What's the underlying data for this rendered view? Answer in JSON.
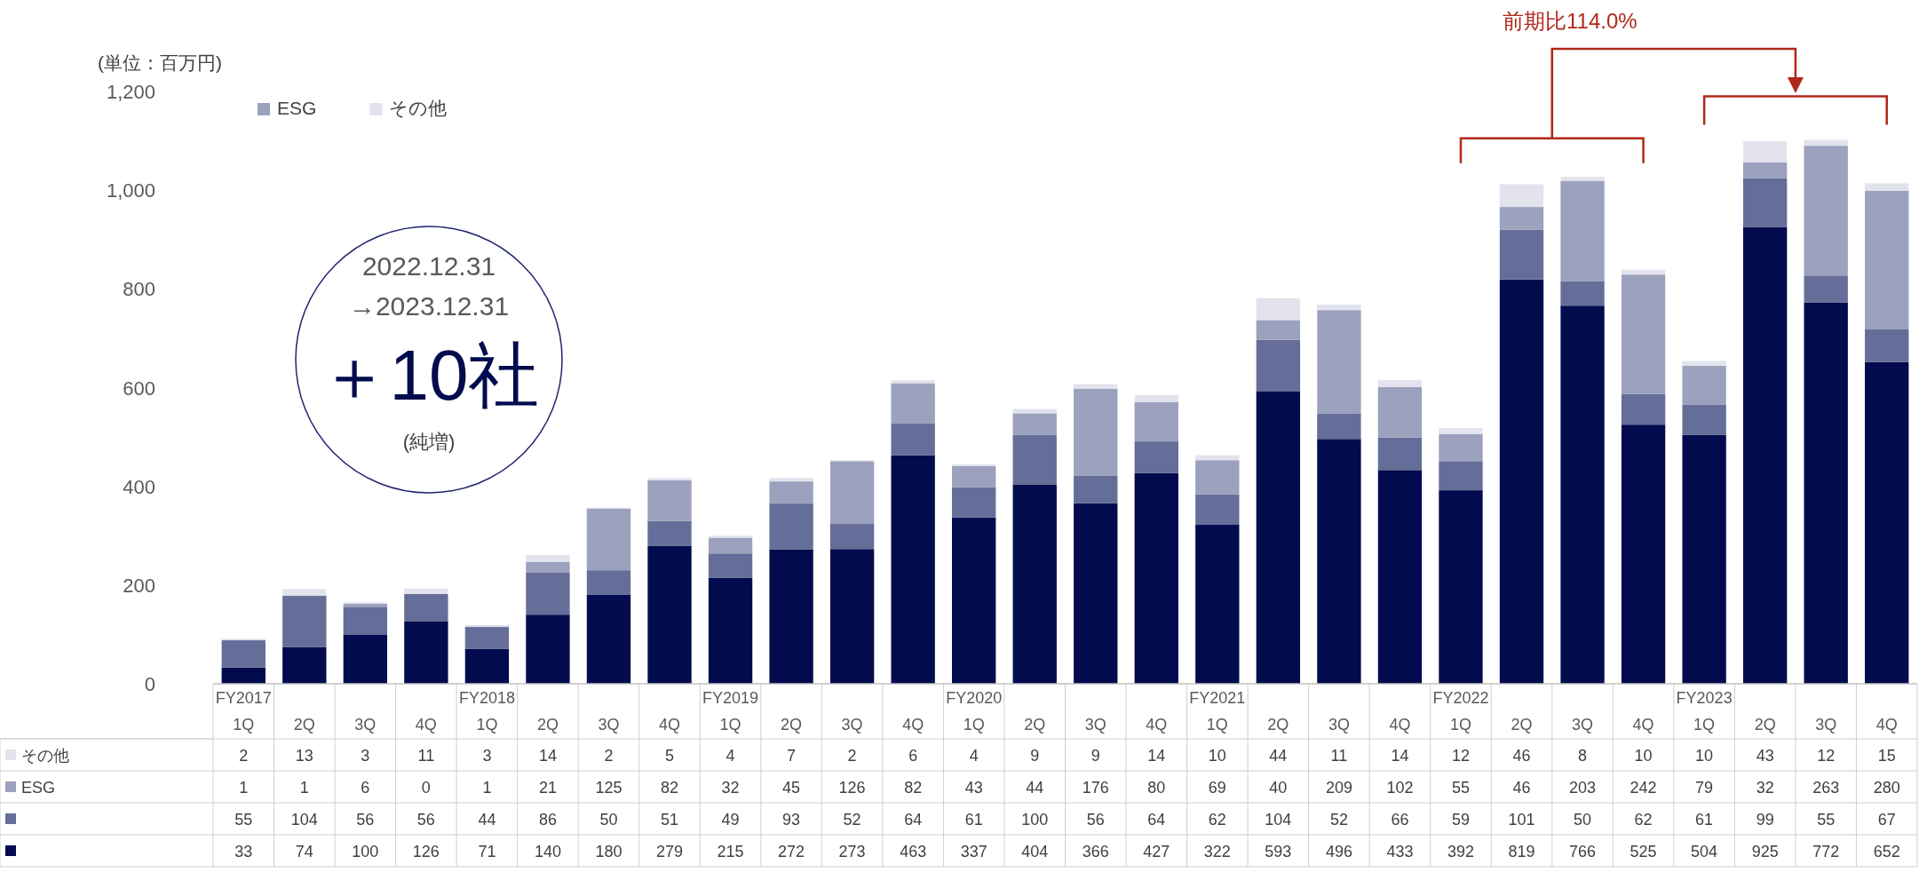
{
  "chart_data": {
    "type": "bar",
    "stacked": true,
    "legend": "top left",
    "data_labels": true,
    "categories": [
      "FY2017\n1Q",
      "2Q",
      "3Q",
      "4Q",
      "FY2018\n1Q",
      "2Q",
      "3Q",
      "4Q",
      "FY2019\n1Q",
      "2Q",
      "3Q",
      "4Q",
      "FY2020\n1Q",
      "2Q",
      "3Q",
      "4Q",
      "FY2021\n1Q",
      "2Q",
      "3Q",
      "4Q",
      "FY2022\n1Q",
      "2Q",
      "3Q",
      "4Q",
      "FY2023\n1Q",
      "2Q",
      "3Q",
      "4Q"
    ],
    "series": [
      {
        "color": "#020b4d",
        "values": [
          33,
          74,
          100,
          126,
          71,
          140,
          180,
          279,
          215,
          272,
          273,
          463,
          337,
          404,
          366,
          427,
          322,
          593,
          496,
          433,
          392,
          819,
          766,
          525,
          504,
          925,
          772,
          652
        ]
      },
      {
        "color": "#646e98",
        "values": [
          55,
          104,
          56,
          56,
          44,
          86,
          50,
          51,
          49,
          93,
          52,
          64,
          61,
          100,
          56,
          64,
          62,
          104,
          52,
          66,
          59,
          101,
          50,
          62,
          61,
          99,
          55,
          67
        ]
      },
      {
        "name": "ESG",
        "color": "#9ca1bd",
        "values": [
          1,
          1,
          6,
          0,
          1,
          21,
          125,
          82,
          32,
          45,
          126,
          82,
          43,
          44,
          176,
          80,
          69,
          40,
          209,
          102,
          55,
          46,
          203,
          242,
          79,
          32,
          263,
          280
        ]
      },
      {
        "name": "その他",
        "color": "#e2e3ed",
        "values": [
          2,
          13,
          3,
          11,
          3,
          14,
          2,
          5,
          4,
          7,
          2,
          6,
          4,
          9,
          9,
          14,
          10,
          44,
          11,
          14,
          12,
          46,
          8,
          10,
          10,
          43,
          12,
          15
        ]
      }
    ],
    "ylim": [
      0,
      1200
    ],
    "yticks": [
      0,
      {
        "value": 200,
        "label": "200"
      },
      {
        "value": 400,
        "label": "400"
      },
      {
        "value": 600,
        "label": "600"
      },
      {
        "value": 800,
        "label": "800"
      },
      {
        "value": 1000,
        "label": "1,000"
      },
      {
        "value": 1200,
        "label": "1,200"
      }
    ],
    "annotations": [
      "(単位：百万円)",
      "2022.12.31",
      "→2023.12.31",
      "＋10社",
      "(純増)",
      "前期比114.0%"
    ]
  }
}
